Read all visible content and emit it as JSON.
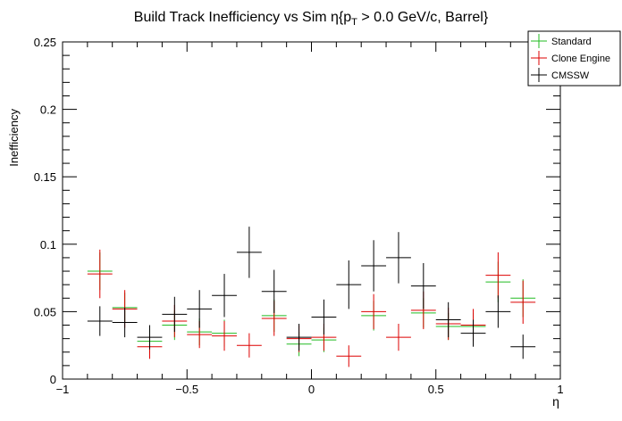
{
  "chart_data": {
    "type": "scatter",
    "title_main": "Build Track Inefficiency vs Sim η{p",
    "title_sub": "T",
    "title_rest": " > 0.0 GeV/c, Barrel}",
    "xlabel": "η",
    "ylabel": "Inefficiency",
    "xlim": [
      -1.0,
      1.0
    ],
    "ylim": [
      0.0,
      0.25
    ],
    "x_ticks": [
      -1,
      -0.5,
      0,
      0.5,
      1
    ],
    "x_tick_labels": [
      "−1",
      "−0.5",
      "0",
      "0.5",
      "1"
    ],
    "y_ticks": [
      0,
      0.05,
      0.1,
      0.15,
      0.2,
      0.25
    ],
    "y_tick_labels": [
      "0",
      "0.05",
      "0.1",
      "0.15",
      "0.2",
      "0.25"
    ],
    "grid": false,
    "legend_position": "top-right",
    "bin_half_width": 0.05,
    "x": [
      -0.85,
      -0.75,
      -0.65,
      -0.55,
      -0.45,
      -0.35,
      -0.25,
      -0.15,
      -0.05,
      0.05,
      0.15,
      0.25,
      0.35,
      0.45,
      0.55,
      0.65,
      0.75,
      0.85
    ],
    "series": [
      {
        "name": "Standard",
        "color": "#22bb22",
        "values": [
          0.08,
          0.053,
          0.028,
          0.04,
          0.035,
          0.034,
          null,
          0.047,
          0.026,
          0.029,
          null,
          0.047,
          null,
          0.049,
          0.039,
          0.039,
          0.072,
          0.06
        ],
        "errors": [
          0.014,
          0.011,
          0.009,
          0.011,
          0.01,
          0.01,
          null,
          0.012,
          0.009,
          0.009,
          null,
          0.011,
          null,
          0.011,
          0.01,
          0.01,
          0.015,
          0.014
        ]
      },
      {
        "name": "Clone Engine",
        "color": "#dd0000",
        "values": [
          0.078,
          0.052,
          0.024,
          0.043,
          0.033,
          0.032,
          0.025,
          0.045,
          0.03,
          0.031,
          0.017,
          0.05,
          0.031,
          0.051,
          0.041,
          0.04,
          0.077,
          0.057
        ],
        "errors": [
          0.018,
          0.014,
          0.009,
          0.012,
          0.01,
          0.011,
          0.009,
          0.013,
          0.01,
          0.01,
          0.008,
          0.013,
          0.01,
          0.014,
          0.012,
          0.012,
          0.017,
          0.016
        ]
      },
      {
        "name": "CMSSW",
        "color": "#000000",
        "values": [
          0.043,
          0.042,
          0.031,
          0.048,
          0.052,
          0.062,
          0.094,
          0.065,
          0.031,
          0.046,
          0.07,
          0.084,
          0.09,
          0.069,
          0.044,
          0.034,
          0.05,
          0.024
        ],
        "errors": [
          0.011,
          0.011,
          0.009,
          0.013,
          0.014,
          0.016,
          0.019,
          0.016,
          0.01,
          0.013,
          0.018,
          0.019,
          0.019,
          0.017,
          0.013,
          0.01,
          0.012,
          0.009
        ]
      }
    ]
  }
}
